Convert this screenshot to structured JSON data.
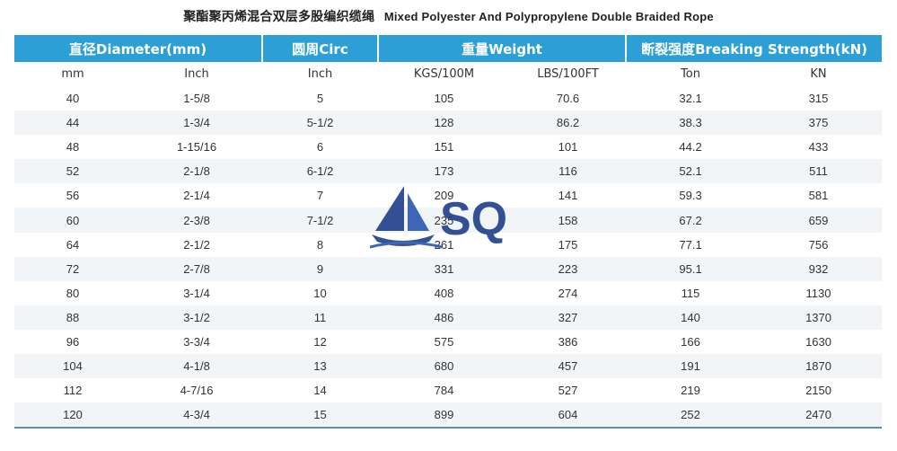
{
  "title": {
    "cn": "聚酯聚丙烯混合双层多股编织缆绳",
    "en": "Mixed Polyester And Polypropylene Double Braided Rope"
  },
  "header_groups": [
    "直径Diameter(mm)",
    "圆周Circ",
    "重量Weight",
    "断裂强度Breaking Strength(kN)"
  ],
  "subheaders": [
    "mm",
    "Inch",
    "Inch",
    "KGS/100M",
    "LBS/100FT",
    "Ton",
    "KN"
  ],
  "rows": [
    [
      "40",
      "1-5/8",
      "5",
      "105",
      "70.6",
      "32.1",
      "315"
    ],
    [
      "44",
      "1-3/4",
      "5-1/2",
      "128",
      "86.2",
      "38.3",
      "375"
    ],
    [
      "48",
      "1-15/16",
      "6",
      "151",
      "101",
      "44.2",
      "433"
    ],
    [
      "52",
      "2-1/8",
      "6-1/2",
      "173",
      "116",
      "52.1",
      "511"
    ],
    [
      "56",
      "2-1/4",
      "7",
      "209",
      "141",
      "59.3",
      "581"
    ],
    [
      "60",
      "2-3/8",
      "7-1/2",
      "235",
      "158",
      "67.2",
      "659"
    ],
    [
      "64",
      "2-1/2",
      "8",
      "261",
      "175",
      "77.1",
      "756"
    ],
    [
      "72",
      "2-7/8",
      "9",
      "331",
      "223",
      "95.1",
      "932"
    ],
    [
      "80",
      "3-1/4",
      "10",
      "408",
      "274",
      "115",
      "1130"
    ],
    [
      "88",
      "3-1/2",
      "11",
      "486",
      "327",
      "140",
      "1370"
    ],
    [
      "96",
      "3-3/4",
      "12",
      "575",
      "386",
      "166",
      "1630"
    ],
    [
      "104",
      "4-1/8",
      "13",
      "680",
      "457",
      "191",
      "1870"
    ],
    [
      "112",
      "4-7/16",
      "14",
      "784",
      "527",
      "219",
      "2150"
    ],
    [
      "120",
      "4-3/4",
      "15",
      "899",
      "604",
      "252",
      "2470"
    ]
  ],
  "watermark": {
    "text": "SQ",
    "icon": "sailboat-icon",
    "color": "#1f3f8a"
  },
  "colors": {
    "header_bg": "#2b9fd6",
    "header_text": "#ffffff",
    "stripe": "#f1f5f7"
  }
}
